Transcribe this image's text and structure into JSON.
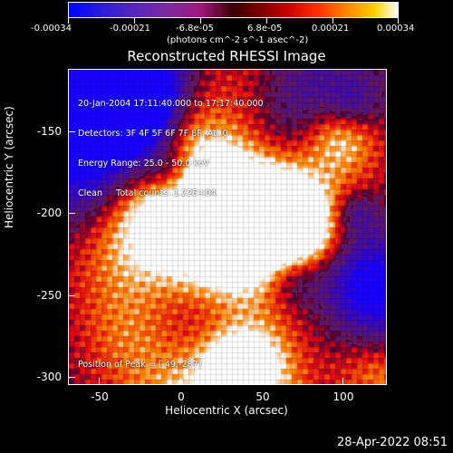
{
  "colorbar": {
    "tick_labels": [
      "-0.00034",
      "-0.00021",
      "-6.8e-05",
      "6.8e-05",
      "0.00021",
      "0.00034"
    ],
    "units_label": "(photons cm^-2 s^-1 asec^-2)"
  },
  "image": {
    "title": "Reconstructed RHESSI Image",
    "info_lines": [
      "20-Jan-2004 17:11:40.000 to 17:17:40.000",
      "Detectors: 3F 4F 5F 6F 7F 8F, Att 0",
      "Energy Range: 25.0 - 50.0 keV",
      "Clean     Total counts: 1.22E+04"
    ],
    "peak_text": "Position of Peak = [-49,-287]"
  },
  "axes": {
    "x_label": "Heliocentric X (arcsec)",
    "y_label": "Heliocentric Y (arcsec)",
    "x_tick_labels": [
      "-50",
      "0",
      "50",
      "100"
    ],
    "y_tick_labels": [
      "-150",
      "-200",
      "-250",
      "-300"
    ]
  },
  "footer": {
    "date_text": "28-Apr-2022 08:51"
  },
  "chart_data": {
    "type": "heatmap",
    "title": "Reconstructed RHESSI Image",
    "xlabel": "Heliocentric X (arcsec)",
    "ylabel": "Heliocentric Y (arcsec)",
    "x_ticks": [
      -50,
      0,
      50,
      100
    ],
    "y_ticks": [
      -150,
      -200,
      -250,
      -300
    ],
    "colorbar_ticks": [
      -0.00034,
      -0.00021,
      -6.8e-05,
      6.8e-05,
      0.00021,
      0.00034
    ],
    "colorbar_units": "(photons cm^-2 s^-1 asec^-2)",
    "peak_position": [
      -49,
      -287
    ]
  }
}
